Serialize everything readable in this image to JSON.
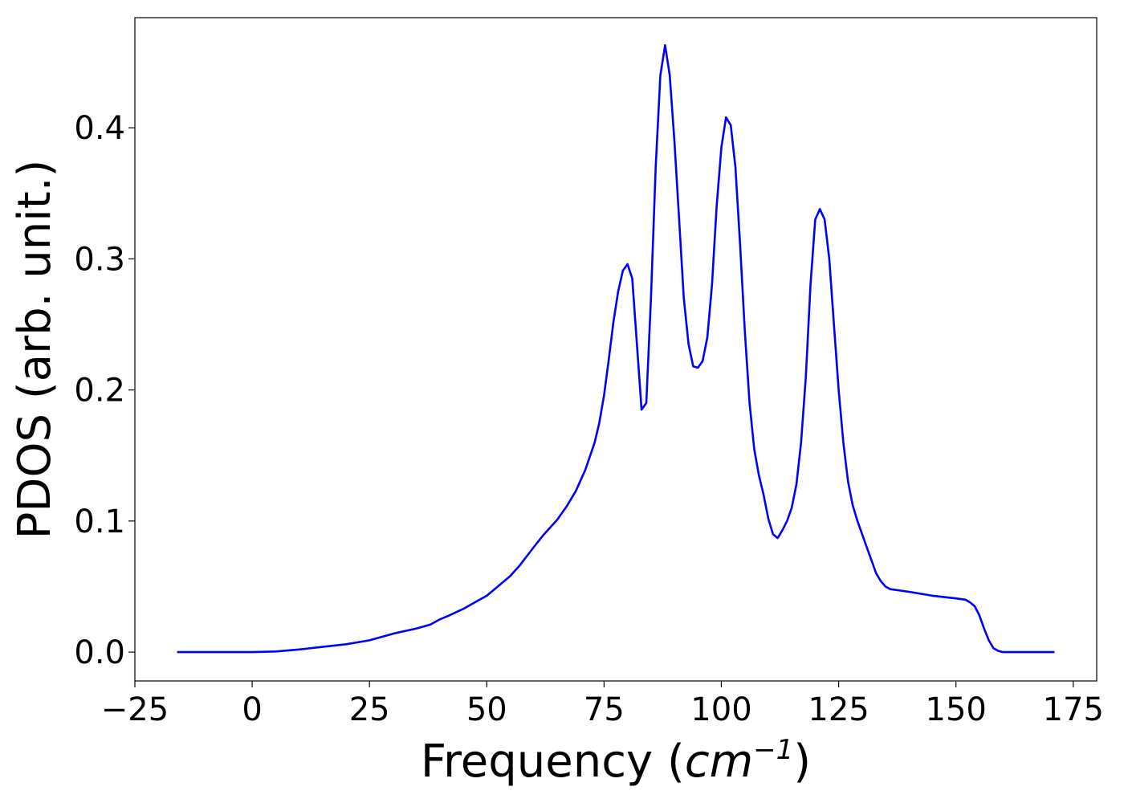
{
  "chart_data": {
    "type": "line",
    "title": "",
    "xlabel_text": "Frequency (",
    "xlabel_math": "cm",
    "xlabel_sup": "−1",
    "xlabel_close": ")",
    "ylabel": "PDOS (arb. unit.)",
    "xlim": [
      -25,
      180
    ],
    "ylim": [
      -0.022,
      0.484
    ],
    "xticks": [
      -25,
      0,
      25,
      50,
      75,
      100,
      125,
      150,
      175
    ],
    "xtick_labels": [
      "−25",
      "0",
      "25",
      "50",
      "75",
      "100",
      "125",
      "150",
      "175"
    ],
    "yticks": [
      0.0,
      0.1,
      0.2,
      0.3,
      0.4
    ],
    "ytick_labels": [
      "0.0",
      "0.1",
      "0.2",
      "0.3",
      "0.4"
    ],
    "grid": false,
    "line_color": "#0000ff",
    "series": [
      {
        "x": [
          -16,
          0,
          5,
          10,
          15,
          20,
          25,
          30,
          35,
          38,
          40,
          42,
          45,
          48,
          50,
          52,
          55,
          57,
          60,
          62,
          65,
          67,
          69,
          71,
          73,
          74,
          75,
          76,
          77,
          78,
          79,
          80,
          81,
          82,
          83,
          84,
          85,
          86,
          87,
          88,
          89,
          90,
          91,
          92,
          93,
          94,
          95,
          96,
          97,
          98,
          99,
          100,
          101,
          102,
          103,
          104,
          105,
          106,
          107,
          108,
          109,
          110,
          111,
          112,
          113,
          114,
          115,
          116,
          117,
          118,
          119,
          120,
          121,
          122,
          123,
          124,
          125,
          126,
          127,
          128,
          129,
          130,
          131,
          132,
          133,
          134,
          135,
          136,
          140,
          145,
          150,
          152,
          153,
          154,
          155,
          156,
          157,
          158,
          159,
          160,
          165,
          171
        ],
        "y": [
          0.0,
          0.0,
          0.0005,
          0.002,
          0.004,
          0.006,
          0.009,
          0.014,
          0.018,
          0.021,
          0.025,
          0.028,
          0.033,
          0.039,
          0.043,
          0.049,
          0.058,
          0.066,
          0.08,
          0.089,
          0.101,
          0.111,
          0.123,
          0.139,
          0.16,
          0.175,
          0.196,
          0.223,
          0.252,
          0.275,
          0.291,
          0.296,
          0.285,
          0.235,
          0.185,
          0.19,
          0.27,
          0.37,
          0.44,
          0.463,
          0.44,
          0.39,
          0.33,
          0.27,
          0.235,
          0.218,
          0.217,
          0.222,
          0.24,
          0.28,
          0.34,
          0.385,
          0.408,
          0.402,
          0.37,
          0.31,
          0.245,
          0.19,
          0.155,
          0.135,
          0.12,
          0.102,
          0.09,
          0.087,
          0.093,
          0.1,
          0.11,
          0.128,
          0.16,
          0.21,
          0.28,
          0.33,
          0.338,
          0.33,
          0.3,
          0.25,
          0.2,
          0.16,
          0.13,
          0.112,
          0.1,
          0.09,
          0.08,
          0.07,
          0.06,
          0.054,
          0.05,
          0.048,
          0.046,
          0.043,
          0.041,
          0.04,
          0.038,
          0.035,
          0.028,
          0.018,
          0.009,
          0.003,
          0.001,
          0.0,
          0.0,
          0.0
        ]
      }
    ]
  }
}
